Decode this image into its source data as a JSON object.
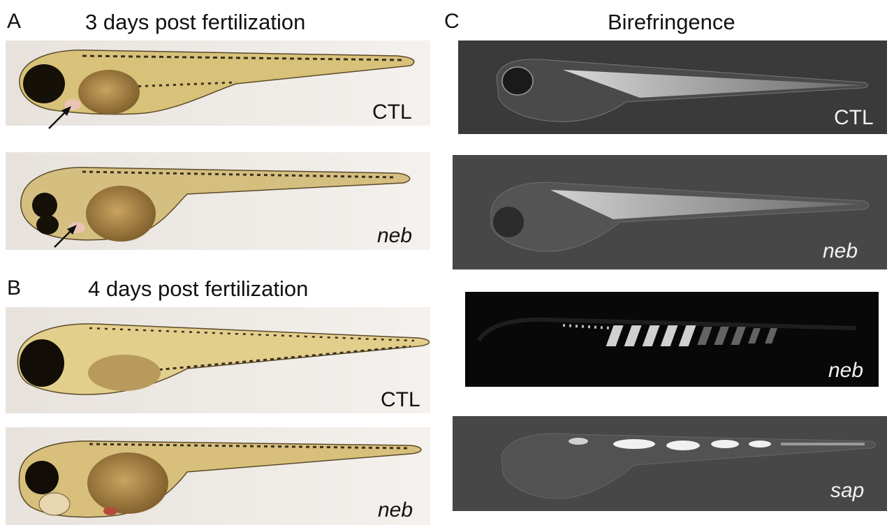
{
  "panels": {
    "A": {
      "letter": "A",
      "title": "3 days post fertilization",
      "labels": [
        "CTL",
        "neb"
      ]
    },
    "B": {
      "letter": "B",
      "title": "4 days post fertilization",
      "labels": [
        "CTL",
        "neb"
      ]
    },
    "C": {
      "letter": "C",
      "title": "Birefringence",
      "labels": [
        "CTL",
        "neb",
        "neb",
        "sap"
      ]
    }
  }
}
